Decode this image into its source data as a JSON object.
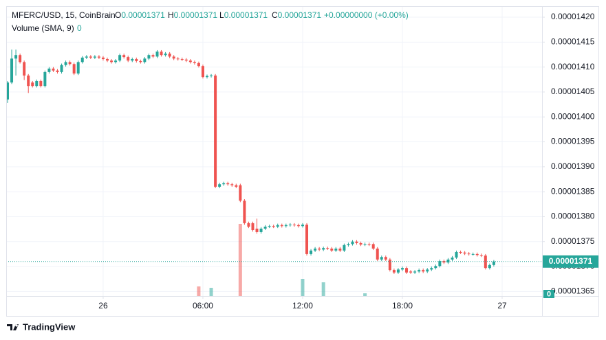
{
  "chart_data": {
    "type": "candlestick",
    "symbol": "MFERC/USD, 15, CoinBrain",
    "ohlc_labels": [
      "O",
      "H",
      "L",
      "C"
    ],
    "ohlc_values": [
      1.371e-05,
      1.371e-05,
      1.371e-05,
      1.371e-05
    ],
    "change": "+0.00000000 (+0.00%)",
    "volume_label": "Volume (SMA, 9)",
    "volume_sma": 0,
    "attribution": "TradingView",
    "up_color": "#26a69a",
    "down_color": "#ef5350",
    "grid": true,
    "xlim": [
      -0.33,
      128.6
    ],
    "xticks": [
      {
        "value": 23,
        "label": "26"
      },
      {
        "value": 47,
        "label": "06:00"
      },
      {
        "value": 71,
        "label": "12:00"
      },
      {
        "value": 95,
        "label": "18:00"
      },
      {
        "value": 119,
        "label": "27"
      }
    ],
    "ylim": [
      1.36408e-05,
      1.42207e-05
    ],
    "yticks": [
      {
        "value": 1.365e-05,
        "label": "0.00001365"
      },
      {
        "value": 1.37e-05,
        "label": "0.00001370"
      },
      {
        "value": 1.375e-05,
        "label": "0.00001375"
      },
      {
        "value": 1.38e-05,
        "label": "0.00001380"
      },
      {
        "value": 1.385e-05,
        "label": "0.00001385"
      },
      {
        "value": 1.39e-05,
        "label": "0.00001390"
      },
      {
        "value": 1.395e-05,
        "label": "0.00001395"
      },
      {
        "value": 1.4e-05,
        "label": "0.00001400"
      },
      {
        "value": 1.405e-05,
        "label": "0.00001405"
      },
      {
        "value": 1.41e-05,
        "label": "0.00001410"
      },
      {
        "value": 1.415e-05,
        "label": "0.00001415"
      },
      {
        "value": 1.42e-05,
        "label": "0.00001420"
      }
    ],
    "open": [
      1.4035e-05,
      1.4069e-05,
      1.4117e-05,
      1.4124e-05,
      1.411e-05,
      1.4083e-05,
      1.4069e-05,
      1.4062e-05,
      1.4072e-05,
      1.4062e-05,
      1.409e-05,
      1.4097e-05,
      1.4093e-05,
      1.409e-05,
      1.4104e-05,
      1.411e-05,
      1.4106e-05,
      1.4087e-05,
      1.411e-05,
      1.4119e-05,
      1.4121e-05,
      1.4119e-05,
      1.4121e-05,
      1.4119e-05,
      1.4116e-05,
      1.4113e-05,
      1.411e-05,
      1.4113e-05,
      1.4124e-05,
      1.412e-05,
      1.4113e-05,
      1.4116e-05,
      1.4112e-05,
      1.411e-05,
      1.4117e-05,
      1.4124e-05,
      1.4121e-05,
      1.4131e-05,
      1.4124e-05,
      1.4127e-05,
      1.4121e-05,
      1.4117e-05,
      1.4116e-05,
      1.4115e-05,
      1.4113e-05,
      1.411e-05,
      1.4108e-05,
      1.4102e-05,
      1.408e-05,
      1.4082e-05,
      1.4083e-05,
      1.386e-05,
      1.3865e-05,
      1.3867e-05,
      1.3865e-05,
      1.3863e-05,
      1.3863e-05,
      1.3832e-05,
      1.3787e-05,
      1.3787e-05,
      1.3776e-05,
      1.3769e-05,
      1.3776e-05,
      1.378e-05,
      1.3781e-05,
      1.378e-05,
      1.3783e-05,
      1.3781e-05,
      1.3783e-05,
      1.3784e-05,
      1.3783e-05,
      1.3781e-05,
      1.3784e-05,
      1.3725e-05,
      1.3732e-05,
      1.3736e-05,
      1.3734e-05,
      1.3737e-05,
      1.3736e-05,
      1.3732e-05,
      1.3736e-05,
      1.3732e-05,
      1.3743e-05,
      1.3745e-05,
      1.375e-05,
      1.3747e-05,
      1.3744e-05,
      1.3745e-05,
      1.3745e-05,
      1.3736e-05,
      1.3714e-05,
      1.3719e-05,
      1.3714e-05,
      1.3693e-05,
      1.3688e-05,
      1.3694e-05,
      1.3697e-05,
      1.369e-05,
      1.3688e-05,
      1.369e-05,
      1.3693e-05,
      1.369e-05,
      1.3694e-05,
      1.3697e-05,
      1.3701e-05,
      1.3711e-05,
      1.3708e-05,
      1.3714e-05,
      1.3718e-05,
      1.3729e-05,
      1.3728e-05,
      1.3726e-05,
      1.3725e-05,
      1.3725e-05,
      1.3723e-05,
      1.3722e-05,
      1.3697e-05,
      1.3703e-05
    ],
    "high": [
      1.4072e-05,
      1.4135e-05,
      1.4135e-05,
      1.4127e-05,
      1.4113e-05,
      1.4086e-05,
      1.4072e-05,
      1.4075e-05,
      1.4075e-05,
      1.4093e-05,
      1.41e-05,
      1.41e-05,
      1.4096e-05,
      1.4107e-05,
      1.4113e-05,
      1.4113e-05,
      1.4109e-05,
      1.4113e-05,
      1.4122e-05,
      1.4124e-05,
      1.4124e-05,
      1.4124e-05,
      1.4124e-05,
      1.4122e-05,
      1.4119e-05,
      1.4116e-05,
      1.4116e-05,
      1.4127e-05,
      1.4127e-05,
      1.4123e-05,
      1.4119e-05,
      1.4119e-05,
      1.4115e-05,
      1.412e-05,
      1.4127e-05,
      1.4127e-05,
      1.4134e-05,
      1.4134e-05,
      1.413e-05,
      1.413e-05,
      1.4124e-05,
      1.412e-05,
      1.4119e-05,
      1.4118e-05,
      1.4116e-05,
      1.4113e-05,
      1.4111e-05,
      1.4105e-05,
      1.4085e-05,
      1.4086e-05,
      1.4086e-05,
      1.3868e-05,
      1.387e-05,
      1.387e-05,
      1.3868e-05,
      1.3866e-05,
      1.3866e-05,
      1.3835e-05,
      1.379e-05,
      1.379e-05,
      1.3796e-05,
      1.3779e-05,
      1.3783e-05,
      1.3784e-05,
      1.3784e-05,
      1.3786e-05,
      1.3786e-05,
      1.3786e-05,
      1.3787e-05,
      1.3787e-05,
      1.3786e-05,
      1.3787e-05,
      1.3787e-05,
      1.3735e-05,
      1.3739e-05,
      1.3739e-05,
      1.374e-05,
      1.374e-05,
      1.3739e-05,
      1.3739e-05,
      1.3739e-05,
      1.3746e-05,
      1.3748e-05,
      1.3753e-05,
      1.3753e-05,
      1.375e-05,
      1.3748e-05,
      1.3748e-05,
      1.3748e-05,
      1.3739e-05,
      1.3722e-05,
      1.3722e-05,
      1.3717e-05,
      1.3696e-05,
      1.3697e-05,
      1.37e-05,
      1.37e-05,
      1.3693e-05,
      1.3693e-05,
      1.3696e-05,
      1.3696e-05,
      1.3697e-05,
      1.37e-05,
      1.3704e-05,
      1.3714e-05,
      1.3714e-05,
      1.3717e-05,
      1.3721e-05,
      1.3732e-05,
      1.3732e-05,
      1.3731e-05,
      1.3729e-05,
      1.3728e-05,
      1.3728e-05,
      1.3726e-05,
      1.3725e-05,
      1.3706e-05,
      1.3713e-05
    ],
    "low": [
      1.4028e-05,
      1.4066e-05,
      1.4083e-05,
      1.4107e-05,
      1.4074e-05,
      1.4048e-05,
      1.4059e-05,
      1.4059e-05,
      1.4059e-05,
      1.4059e-05,
      1.4087e-05,
      1.409e-05,
      1.4087e-05,
      1.4087e-05,
      1.4101e-05,
      1.4103e-05,
      1.4084e-05,
      1.4084e-05,
      1.4107e-05,
      1.4116e-05,
      1.4116e-05,
      1.4116e-05,
      1.4116e-05,
      1.4113e-05,
      1.411e-05,
      1.4107e-05,
      1.4107e-05,
      1.411e-05,
      1.4117e-05,
      1.411e-05,
      1.411e-05,
      1.4109e-05,
      1.4107e-05,
      1.4107e-05,
      1.4114e-05,
      1.4118e-05,
      1.4118e-05,
      1.4121e-05,
      1.4121e-05,
      1.4118e-05,
      1.4114e-05,
      1.4113e-05,
      1.4112e-05,
      1.411e-05,
      1.4107e-05,
      1.4105e-05,
      1.4099e-05,
      1.4077e-05,
      1.4077e-05,
      1.4079e-05,
      1.3857e-05,
      1.3857e-05,
      1.3862e-05,
      1.3862e-05,
      1.386e-05,
      1.3857e-05,
      1.3829e-05,
      1.3784e-05,
      1.3777e-05,
      1.377e-05,
      1.3766e-05,
      1.3766e-05,
      1.3773e-05,
      1.3777e-05,
      1.3777e-05,
      1.3777e-05,
      1.3778e-05,
      1.3778e-05,
      1.378e-05,
      1.378e-05,
      1.3778e-05,
      1.3778e-05,
      1.3722e-05,
      1.3722e-05,
      1.3729e-05,
      1.3731e-05,
      1.3731e-05,
      1.3733e-05,
      1.3729e-05,
      1.3729e-05,
      1.3729e-05,
      1.3729e-05,
      1.374e-05,
      1.3742e-05,
      1.3744e-05,
      1.3741e-05,
      1.3741e-05,
      1.3741e-05,
      1.3733e-05,
      1.3711e-05,
      1.3711e-05,
      1.3711e-05,
      1.369e-05,
      1.3685e-05,
      1.3685e-05,
      1.3691e-05,
      1.3685e-05,
      1.3685e-05,
      1.3685e-05,
      1.3687e-05,
      1.3687e-05,
      1.3687e-05,
      1.3691e-05,
      1.3694e-05,
      1.3698e-05,
      1.3705e-05,
      1.3705e-05,
      1.3711e-05,
      1.3715e-05,
      1.3725e-05,
      1.3723e-05,
      1.3722e-05,
      1.3722e-05,
      1.372e-05,
      1.3719e-05,
      1.3694e-05,
      1.3694e-05,
      1.37e-05
    ],
    "close": [
      1.4069e-05,
      1.4117e-05,
      1.4124e-05,
      1.411e-05,
      1.4083e-05,
      1.4062e-05,
      1.4062e-05,
      1.4072e-05,
      1.4062e-05,
      1.409e-05,
      1.4097e-05,
      1.4093e-05,
      1.409e-05,
      1.4104e-05,
      1.411e-05,
      1.4106e-05,
      1.4087e-05,
      1.411e-05,
      1.4119e-05,
      1.4121e-05,
      1.4119e-05,
      1.4121e-05,
      1.4119e-05,
      1.4116e-05,
      1.4113e-05,
      1.411e-05,
      1.4113e-05,
      1.4124e-05,
      1.412e-05,
      1.4113e-05,
      1.4116e-05,
      1.4112e-05,
      1.411e-05,
      1.4117e-05,
      1.4124e-05,
      1.4121e-05,
      1.4131e-05,
      1.4124e-05,
      1.4127e-05,
      1.4121e-05,
      1.4117e-05,
      1.4116e-05,
      1.4115e-05,
      1.4113e-05,
      1.411e-05,
      1.4108e-05,
      1.4102e-05,
      1.408e-05,
      1.4082e-05,
      1.4083e-05,
      1.386e-05,
      1.3865e-05,
      1.3867e-05,
      1.3865e-05,
      1.3863e-05,
      1.386e-05,
      1.3832e-05,
      1.3787e-05,
      1.378e-05,
      1.3773e-05,
      1.3769e-05,
      1.3776e-05,
      1.378e-05,
      1.3781e-05,
      1.378e-05,
      1.3783e-05,
      1.3781e-05,
      1.3783e-05,
      1.3784e-05,
      1.3783e-05,
      1.3781e-05,
      1.3784e-05,
      1.3725e-05,
      1.3732e-05,
      1.3736e-05,
      1.3734e-05,
      1.3737e-05,
      1.3736e-05,
      1.3732e-05,
      1.3736e-05,
      1.3732e-05,
      1.3743e-05,
      1.3745e-05,
      1.375e-05,
      1.3747e-05,
      1.3744e-05,
      1.3745e-05,
      1.3744e-05,
      1.3736e-05,
      1.3714e-05,
      1.3719e-05,
      1.3714e-05,
      1.3693e-05,
      1.3688e-05,
      1.3694e-05,
      1.3697e-05,
      1.3688e-05,
      1.3688e-05,
      1.369e-05,
      1.3693e-05,
      1.369e-05,
      1.3694e-05,
      1.3697e-05,
      1.3701e-05,
      1.3711e-05,
      1.3708e-05,
      1.3714e-05,
      1.3718e-05,
      1.3729e-05,
      1.3728e-05,
      1.3726e-05,
      1.3725e-05,
      1.3725e-05,
      1.3723e-05,
      1.3722e-05,
      1.3697e-05,
      1.3703e-05,
      1.371e-05
    ],
    "volume": [
      0,
      0,
      0,
      0,
      0,
      0,
      0,
      0,
      0,
      0,
      0,
      0,
      0,
      0,
      0,
      0,
      0,
      0,
      0,
      0,
      0,
      0,
      0,
      0,
      0,
      0,
      0,
      0,
      0,
      0,
      0,
      0,
      0,
      0,
      0,
      0,
      0,
      0,
      0,
      0,
      0,
      0,
      0,
      0,
      0,
      0,
      14,
      0,
      0,
      12,
      0,
      0,
      0,
      0,
      0,
      0,
      105,
      0,
      0,
      0,
      0,
      0,
      0,
      0,
      0,
      0,
      0,
      0,
      0,
      0,
      0,
      25,
      0,
      0,
      0,
      0,
      20,
      0,
      0,
      0,
      0,
      0,
      0,
      0,
      0,
      0,
      4,
      0,
      0,
      0,
      0,
      0,
      0,
      0,
      0,
      0,
      0,
      0,
      0,
      0,
      0,
      0,
      0,
      0,
      0,
      0,
      0,
      0,
      0,
      0,
      0,
      0,
      0,
      0,
      0,
      0,
      0,
      0
    ]
  }
}
